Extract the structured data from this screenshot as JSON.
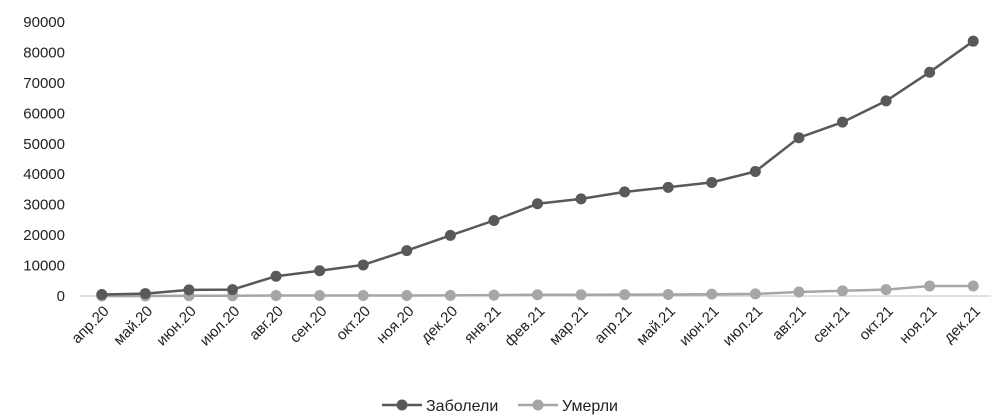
{
  "chart_data": {
    "type": "line",
    "title": "",
    "xlabel": "",
    "ylabel": "",
    "categories": [
      "апр.20",
      "май.20",
      "июн.20",
      "июл.20",
      "авг.20",
      "сен.20",
      "окт.20",
      "ноя.20",
      "дек.20",
      "янв.21",
      "фев.21",
      "мар.21",
      "апр.21",
      "май.21",
      "июн.21",
      "июл.21",
      "авг.21",
      "сен.21",
      "окт.21",
      "ноя.21",
      "дек.21"
    ],
    "ylim": [
      0,
      90000
    ],
    "yticks": [
      0,
      10000,
      20000,
      30000,
      40000,
      50000,
      60000,
      70000,
      80000,
      90000
    ],
    "ytick_labels": [
      "0",
      "10000",
      "20000",
      "30000",
      "40000",
      "50000",
      "60000",
      "70000",
      "80000",
      "90000"
    ],
    "grid": false,
    "legend_position": "bottom",
    "series": [
      {
        "name": "Заболели",
        "color": "#595959",
        "values": [
          500,
          800,
          2000,
          2100,
          6500,
          8300,
          10200,
          14900,
          19900,
          24800,
          30300,
          31900,
          34200,
          35700,
          37300,
          40900,
          52000,
          57100,
          64100,
          73500,
          83700
        ]
      },
      {
        "name": "Умерли",
        "color": "#a6a6a6",
        "values": [
          0,
          0,
          100,
          100,
          150,
          150,
          150,
          150,
          200,
          300,
          400,
          400,
          450,
          500,
          600,
          700,
          1300,
          1700,
          2100,
          3300,
          3300
        ]
      }
    ]
  }
}
